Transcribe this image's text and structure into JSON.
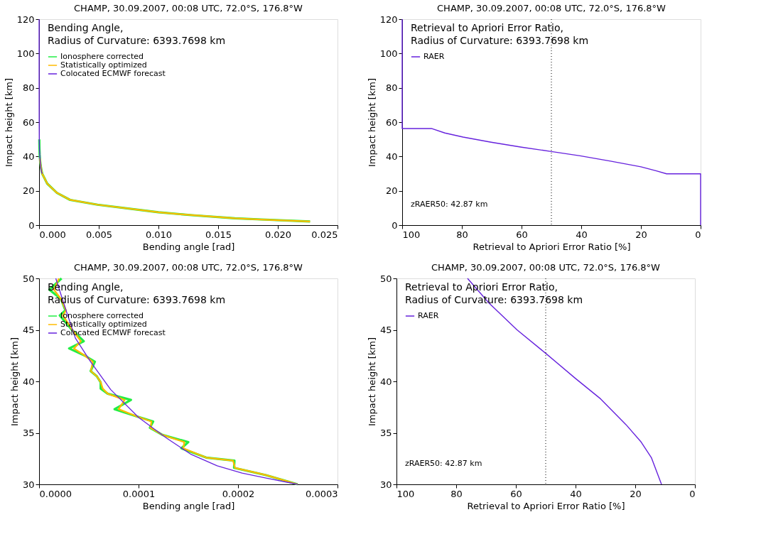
{
  "chart_data": [
    {
      "type": "line",
      "title": "CHAMP, 30.09.2007, 00:08 UTC, 72.0°S, 176.8°W",
      "subtitle": "Bending Angle,\nRadius of Curvature: 6393.7698 km",
      "xlabel": "Bending angle [rad]",
      "ylabel": "Impact height [km]",
      "xlim": [
        0,
        0.025
      ],
      "ylim": [
        0,
        120
      ],
      "xticks": [
        {
          "value": 0,
          "label": "0.000"
        },
        {
          "value": 0.005,
          "label": "0.005"
        },
        {
          "value": 0.01,
          "label": "0.010"
        },
        {
          "value": 0.015,
          "label": "0.015"
        },
        {
          "value": 0.02,
          "label": "0.020"
        },
        {
          "value": 0.025,
          "label": "0.025"
        }
      ],
      "yticks": [
        0,
        20,
        40,
        60,
        80,
        100,
        120
      ],
      "grid": false,
      "legend": "top left",
      "line_style": "solid",
      "marker": "none",
      "series": [
        {
          "name": "Ionosphere corrected",
          "color": "#22ee44",
          "x": [
            2e-05,
            3e-05,
            5e-05,
            7e-05,
            0.0001,
            0.00015,
            0.0002,
            0.00026,
            0.00068,
            0.0015,
            0.0026,
            0.0049,
            0.01,
            0.0128,
            0.0164,
            0.0186,
            0.0227
          ],
          "values": [
            50,
            45,
            41,
            39,
            36.5,
            34,
            32,
            30,
            24.2,
            18.8,
            14.7,
            11.9,
            7.5,
            5.8,
            4.0,
            3.3,
            2.1
          ]
        },
        {
          "name": "Statistically optimized",
          "color": "#ffbb00",
          "x": [
            7e-05,
            0.0001,
            0.00015,
            0.0002,
            0.00026,
            0.00068,
            0.0015,
            0.0026,
            0.0049,
            0.01,
            0.0128,
            0.0164,
            0.0186,
            0.0227
          ],
          "values": [
            39,
            36.5,
            34,
            32,
            30,
            24.2,
            18.8,
            14.7,
            11.9,
            7.5,
            5.8,
            4.0,
            3.3,
            2.1
          ]
        },
        {
          "name": "Colocated ECMWF forecast",
          "color": "#6622dd",
          "x": [
            2e-06,
            5e-06,
            1e-05,
            1.68e-05,
            3.65e-05,
            7.2e-05,
            0.0001,
            0.000153,
            0.000204,
            0.00026
          ],
          "values": [
            120,
            80,
            60,
            50,
            44.2,
            39.2,
            36.5,
            32.9,
            31.1,
            30
          ]
        }
      ]
    },
    {
      "type": "line",
      "title": "CHAMP, 30.09.2007, 00:08 UTC, 72.0°S, 176.8°W",
      "subtitle": "Retrieval to Apriori Error Ratio,\nRadius of Curvature: 6393.7698 km",
      "xlabel": "Retrieval to Apriori Error Ratio [%]",
      "ylabel": "Impact height [km]",
      "xlim": [
        100,
        0
      ],
      "ylim": [
        0,
        120
      ],
      "xticks": [
        100,
        80,
        60,
        40,
        20,
        0
      ],
      "yticks": [
        0,
        20,
        40,
        60,
        80,
        100,
        120
      ],
      "grid": false,
      "legend": "top left",
      "line_style": "solid",
      "marker": "none",
      "ref_lines": [
        {
          "axis": "x",
          "value": 50,
          "line_style": "dotted",
          "color": "#000000"
        }
      ],
      "annotations": [
        "zRAER50: 42.87 km"
      ],
      "series": [
        {
          "name": "RAER",
          "color": "#6622dd",
          "x": [
            100,
            100,
            90.2,
            85.7,
            79.6,
            70.2,
            60,
            50,
            40.4,
            30.2,
            20,
            14.8,
            11.4,
            0,
            0
          ],
          "values": [
            120,
            56.3,
            56.3,
            53.7,
            51.3,
            48.3,
            45.4,
            42.9,
            40.4,
            37.3,
            34,
            31.6,
            29.9,
            29.9,
            0
          ]
        }
      ]
    },
    {
      "type": "line",
      "title": "CHAMP, 30.09.2007, 00:08 UTC, 72.0°S, 176.8°W",
      "subtitle": "Bending Angle,\nRadius of Curvature: 6393.7698 km",
      "xlabel": "Bending angle [rad]",
      "ylabel": "Impact height [km]",
      "xlim": [
        0,
        0.0003
      ],
      "ylim": [
        30,
        50
      ],
      "xticks": [
        {
          "value": 0,
          "label": "0.0000"
        },
        {
          "value": 0.0001,
          "label": "0.0001"
        },
        {
          "value": 0.0002,
          "label": "0.0002"
        },
        {
          "value": 0.0003,
          "label": "0.0003"
        }
      ],
      "yticks": [
        30,
        35,
        40,
        45,
        50
      ],
      "grid": false,
      "legend": "top left",
      "line_style": "solid",
      "marker": "none",
      "series": [
        {
          "name": "Ionosphere corrected",
          "color": "#22ee44",
          "x": [
            2.26e-05,
            1.04e-05,
            2.2e-05,
            2.64e-05,
            2.08e-05,
            3.3e-05,
            4.49e-05,
            3.02e-05,
            4.6e-05,
            5.61e-05,
            5.18e-05,
            5.8e-05,
            6.19e-05,
            6.19e-05,
            6.9e-05,
            9.24e-05,
            7.59e-05,
            9.8e-05,
            0.0001147,
            0.0001114,
            0.000124,
            0.00015,
            0.000143,
            0.000168,
            0.0001964,
            0.000196,
            0.000228,
            0.00026
          ],
          "values": [
            50,
            48.9,
            48,
            46.9,
            46.4,
            45,
            43.9,
            43.2,
            42.5,
            41.9,
            41.0,
            40.5,
            39.9,
            39.3,
            38.8,
            38.2,
            37.3,
            36.6,
            36.1,
            35.5,
            34.8,
            34.1,
            33.5,
            32.6,
            32.3,
            31.6,
            30.9,
            30
          ]
        },
        {
          "name": "Statistically optimized",
          "color": "#ffbb00",
          "x": [
            2e-05,
            1.5e-05,
            2.2e-05,
            2.7e-05,
            2.4e-05,
            3.35e-05,
            4.2e-05,
            3.5e-05,
            4.6e-05,
            5.4e-05,
            5.2e-05,
            5.8e-05,
            6.2e-05,
            6.4e-05,
            6.9e-05,
            8.6e-05,
            8e-05,
            9.8e-05,
            0.000113,
            0.000112,
            0.000124,
            0.000146,
            0.000145,
            0.000168,
            0.000195,
            0.000197,
            0.000228,
            0.00026
          ],
          "values": [
            50,
            48.9,
            48,
            46.9,
            46.4,
            45,
            43.9,
            43.2,
            42.5,
            41.9,
            41.0,
            40.5,
            39.9,
            39.3,
            38.8,
            38.2,
            37.3,
            36.6,
            36.1,
            35.5,
            34.8,
            34.1,
            33.5,
            32.6,
            32.3,
            31.6,
            30.9,
            30
          ]
        },
        {
          "name": "Colocated ECMWF forecast",
          "color": "#6622dd",
          "x": [
            1.68e-05,
            2.64e-05,
            3.65e-05,
            5.18e-05,
            7.2e-05,
            0.0001,
            0.000128,
            0.000153,
            0.000179,
            0.000204,
            0.000229,
            0.00026
          ],
          "values": [
            50,
            47.1,
            44.2,
            41.9,
            39.2,
            36.5,
            34.5,
            32.9,
            31.8,
            31.1,
            30.6,
            30
          ]
        }
      ]
    },
    {
      "type": "line",
      "title": "CHAMP, 30.09.2007, 00:08 UTC, 72.0°S, 176.8°W",
      "subtitle": "Retrieval to Apriori Error Ratio,\nRadius of Curvature: 6393.7698 km",
      "xlabel": "Retrieval to Apriori Error Ratio [%]",
      "ylabel": "Impact height [km]",
      "xlim": [
        100,
        0
      ],
      "ylim": [
        30,
        50
      ],
      "xticks": [
        100,
        80,
        60,
        40,
        20,
        0
      ],
      "yticks": [
        30,
        35,
        40,
        45,
        50
      ],
      "grid": false,
      "legend": "top left",
      "line_style": "solid",
      "marker": "none",
      "ref_lines": [
        {
          "axis": "x",
          "value": 50,
          "line_style": "dotted",
          "color": "#000000"
        }
      ],
      "annotations": [
        "zRAER50: 42.87 km"
      ],
      "series": [
        {
          "name": "RAER",
          "color": "#6622dd",
          "x": [
            76.2,
            69,
            59.6,
            49.9,
            40.1,
            31.6,
            23.1,
            18,
            14.6,
            11.2
          ],
          "values": [
            50,
            47.6,
            45,
            42.7,
            40.3,
            38.3,
            35.8,
            34.1,
            32.6,
            30
          ]
        }
      ]
    }
  ]
}
